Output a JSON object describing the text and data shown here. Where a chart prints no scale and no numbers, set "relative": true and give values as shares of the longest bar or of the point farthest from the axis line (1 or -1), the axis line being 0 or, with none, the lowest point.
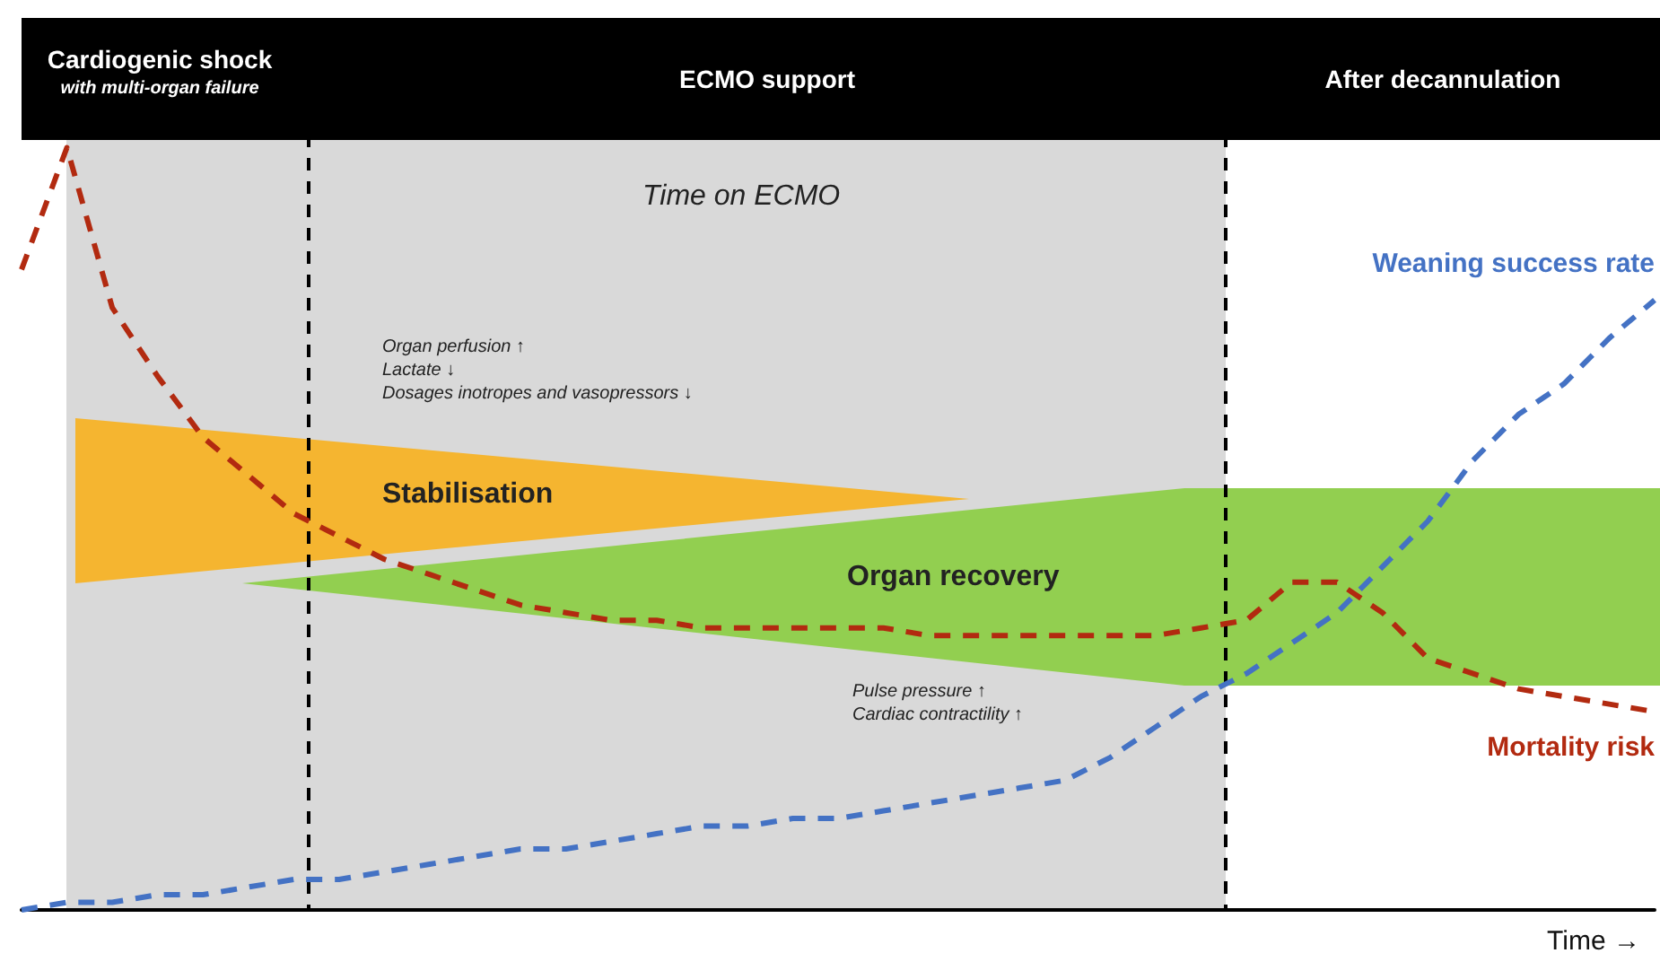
{
  "chart_data": {
    "type": "line",
    "relative": true,
    "xlabel": "Time →",
    "marker": "none",
    "line_style": "dashed",
    "categories": [
      null,
      null,
      null,
      null,
      null,
      null,
      null,
      null,
      null,
      null,
      null,
      null,
      null,
      null,
      null,
      null,
      null,
      null,
      null,
      null,
      null,
      null,
      null,
      null,
      null,
      null,
      null,
      null,
      null,
      null,
      null,
      null,
      null,
      null,
      null,
      null,
      null
    ],
    "series": [
      {
        "name": "Weaning success rate",
        "color": "#4472c4",
        "values": [
          0,
          0.01,
          0.01,
          0.02,
          0.02,
          0.03,
          0.04,
          0.04,
          0.05,
          0.06,
          0.07,
          0.08,
          0.08,
          0.09,
          0.1,
          0.11,
          0.11,
          0.12,
          0.12,
          0.13,
          0.14,
          0.15,
          0.16,
          0.17,
          0.2,
          0.24,
          0.28,
          0.31,
          0.35,
          0.39,
          0.45,
          0.51,
          0.59,
          0.65,
          0.69,
          0.75,
          0.8
        ]
      },
      {
        "name": "Mortality risk",
        "color": "#b22a10",
        "values": [
          0.84,
          1,
          0.79,
          0.7,
          0.62,
          0.57,
          0.52,
          0.49,
          0.46,
          0.44,
          0.42,
          0.4,
          0.39,
          0.38,
          0.38,
          0.37,
          0.37,
          0.37,
          0.37,
          0.37,
          0.36,
          0.36,
          0.36,
          0.36,
          0.36,
          0.36,
          0.37,
          0.38,
          0.43,
          0.43,
          0.39,
          0.33,
          0.31,
          0.29,
          0.28,
          0.27,
          0.26
        ]
      }
    ],
    "annotations": [
      "Cardiogenic shock",
      "with multi-organ failure",
      "ECMO support",
      "After decannulation",
      "Organ perfusion ↑\nLactate ↓\nDosages inotropes and vasopressors ↓",
      "Pulse pressure ↑\nCardiac contractility ↑",
      "Stabilisation",
      "Organ recovery",
      "Time on ECMO"
    ]
  }
}
